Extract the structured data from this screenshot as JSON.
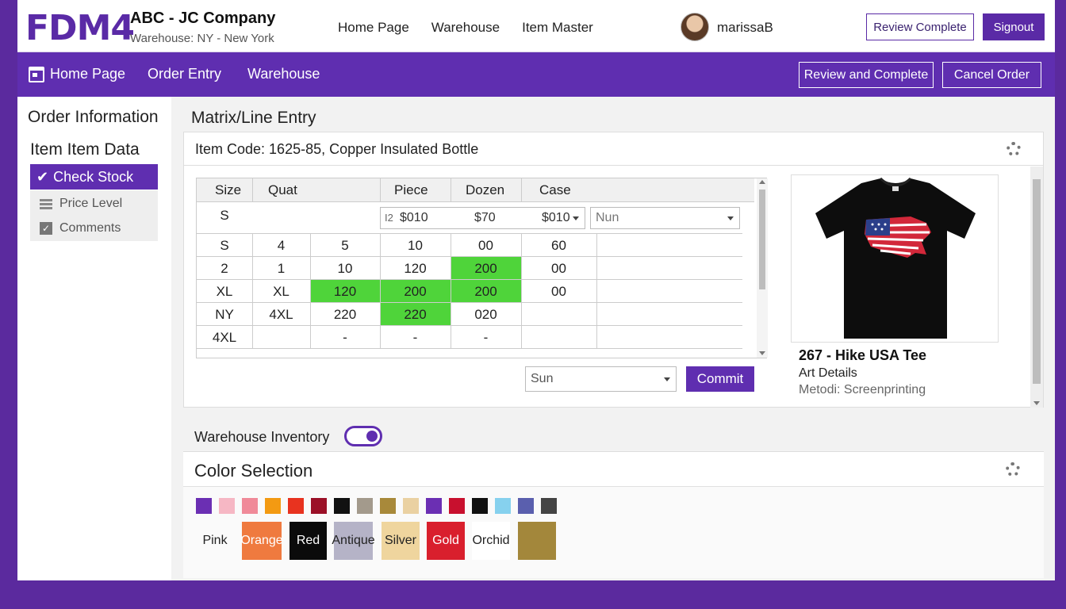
{
  "header": {
    "logo": "FDM4",
    "company": "ABC - JC Company",
    "warehouse": "Warehouse: NY - New York",
    "nav": [
      "Home Page",
      "Warehouse",
      "Item Master"
    ],
    "username": "marissaB",
    "review_label": "Review Complete",
    "signout_label": "Signout"
  },
  "subnav": {
    "items": [
      "Home Page",
      "Order Entry",
      "Warehouse"
    ],
    "review_and_complete": "Review and Complete",
    "cancel_order": "Cancel Order"
  },
  "sidebar": {
    "title": "Order Information",
    "subtitle": "Item Item Data",
    "active": "Check Stock",
    "items": [
      "Price Level",
      "Comments"
    ]
  },
  "matrix": {
    "title": "Matrix/Line Entry",
    "item_code": "Item Code: 1625-85, Copper Insulated Bottle",
    "headers": [
      "Size",
      "Quat",
      "Piece",
      "Dozen",
      "Case"
    ],
    "input_row": {
      "size": "S",
      "prefix": "I2",
      "val1": "$010",
      "val2": "$70",
      "val3": "$010",
      "select": "Nun"
    },
    "rows": [
      [
        "S",
        "4",
        "5",
        "10",
        "00",
        "60"
      ],
      [
        "2",
        "1",
        "10",
        "120",
        "200",
        "00"
      ],
      [
        "XL",
        "XL",
        "120",
        "200",
        "200",
        "00"
      ],
      [
        "NY",
        "4XL",
        "220",
        "220",
        "020",
        ""
      ],
      [
        "4XL",
        "",
        "-",
        "-",
        "-",
        ""
      ]
    ],
    "bottom_select": "Sun",
    "commit_label": "Commit",
    "highlight_color": "#4fd43a"
  },
  "product": {
    "name": "267 - Hike USA Tee",
    "art": "Art Details",
    "method": "Metodi: Screenprinting"
  },
  "inventory": {
    "label": "Warehouse Inventory",
    "toggle_on": true
  },
  "colors": {
    "title": "Color Selection",
    "swatches": [
      "#6b2fb3",
      "#f6b7c4",
      "#f08a99",
      "#f39a12",
      "#e8331f",
      "#9b1027",
      "#111111",
      "#a39a8c",
      "#a8893a",
      "#ead1a2",
      "#6b2fb3",
      "#c8102e",
      "#111111",
      "#86d1ee",
      "#5a5fae",
      "#444444"
    ],
    "chips": [
      {
        "label": "Pink",
        "bg": "#fafafa",
        "fg": "#222222"
      },
      {
        "label": "Orange",
        "bg": "#ef7a3f",
        "fg": "#ffffff"
      },
      {
        "label": "Red",
        "bg": "#0b0b0b",
        "fg": "#ffffff"
      },
      {
        "label": "Antique",
        "bg": "#b5b3c7",
        "fg": "#222222"
      },
      {
        "label": "Silver",
        "bg": "#efd59e",
        "fg": "#222222"
      },
      {
        "label": "Gold",
        "bg": "#d91f2d",
        "fg": "#ffffff"
      },
      {
        "label": "Orchid",
        "bg": "#ffffff",
        "fg": "#222222"
      },
      {
        "label": "",
        "bg": "#a3873b",
        "fg": "#222222"
      }
    ]
  }
}
